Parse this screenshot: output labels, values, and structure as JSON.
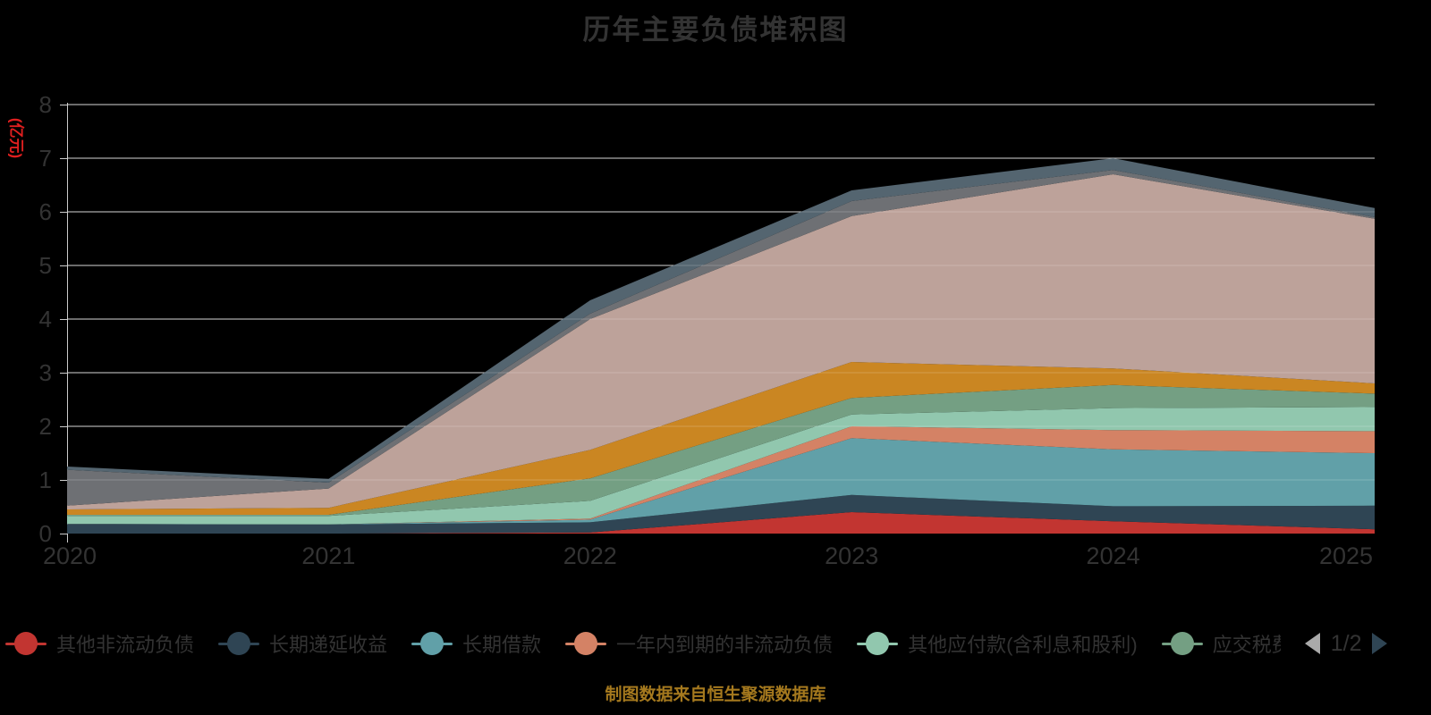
{
  "title": "历年主要负债堆积图",
  "y_axis": {
    "name": "(亿元)",
    "min": 0,
    "max": 8,
    "tick_labels": [
      "0",
      "1",
      "2",
      "3",
      "4",
      "5",
      "6",
      "7",
      "8"
    ]
  },
  "x_axis": {
    "labels": [
      "2020",
      "2021",
      "2022",
      "2023",
      "2024",
      "2025"
    ]
  },
  "legend": {
    "items": [
      {
        "label": "其他非流动负债",
        "color": "#c23531",
        "clipped": false
      },
      {
        "label": "长期递延收益",
        "color": "#2f4554",
        "clipped": false
      },
      {
        "label": "长期借款",
        "color": "#61a0a8",
        "clipped": false
      },
      {
        "label": "一年内到期的非流动负债",
        "color": "#d48265",
        "clipped": false
      },
      {
        "label": "其他应付款(含利息和股利)",
        "color": "#91c7ae",
        "clipped": false
      },
      {
        "label": "应交税费",
        "color": "#749f83",
        "clipped": true
      }
    ],
    "pager": {
      "page": "1/2"
    }
  },
  "source_note": "制图数据来自恒生聚源数据库",
  "colors": {
    "background": "#000000",
    "title_text": "#333333",
    "axis_label": "#333333",
    "axis_line": "#cccccc",
    "grid_line": "#cccccc",
    "y_name_text": "#e01f1f",
    "legend_text": "#333333",
    "pager_prev": "#aaaaaa",
    "pager_next": "#2f4554",
    "source_text": "#a5791e"
  },
  "chart_data": {
    "type": "area",
    "stacked": true,
    "title": "历年主要负债堆积图",
    "xlabel": "",
    "ylabel": "(亿元)",
    "x": [
      "2020",
      "2021",
      "2022",
      "2023",
      "2024",
      "2025"
    ],
    "ylim": [
      0,
      8
    ],
    "y_ticks": [
      0,
      1,
      2,
      3,
      4,
      5,
      6,
      7,
      8
    ],
    "grid": true,
    "legend_position": "bottom",
    "legend_pages": "1/2",
    "series": [
      {
        "name": "其他非流动负债",
        "color": "#c23531",
        "values": [
          0,
          0,
          0.02,
          0.4,
          0.23,
          0.08
        ]
      },
      {
        "name": "长期递延收益",
        "color": "#2f4554",
        "values": [
          0.18,
          0.17,
          0.19,
          0.32,
          0.28,
          0.44
        ]
      },
      {
        "name": "长期借款",
        "color": "#61a0a8",
        "values": [
          0,
          0,
          0.05,
          1.06,
          1.06,
          0.98
        ]
      },
      {
        "name": "一年内到期的非流动负债",
        "color": "#d48265",
        "values": [
          0,
          0,
          0.02,
          0.22,
          0.36,
          0.41
        ]
      },
      {
        "name": "其他应付款(含利息和股利)",
        "color": "#91c7ae",
        "values": [
          0.15,
          0.16,
          0.33,
          0.22,
          0.41,
          0.45
        ]
      },
      {
        "name": "应交税费",
        "color": "#749f83",
        "values": [
          0.02,
          0.02,
          0.42,
          0.31,
          0.43,
          0.25
        ]
      },
      {
        "name": "",
        "color": "#ca8622",
        "values": [
          0.1,
          0.13,
          0.53,
          0.67,
          0.31,
          0.19
        ]
      },
      {
        "name": "",
        "color": "#bda29a",
        "values": [
          0.07,
          0.36,
          2.44,
          2.72,
          3.62,
          3.07
        ]
      },
      {
        "name": "",
        "color": "#6e7074",
        "values": [
          0.67,
          0.11,
          0.1,
          0.28,
          0.08,
          0.03
        ]
      },
      {
        "name": "",
        "color": "#546570",
        "values": [
          0.06,
          0.07,
          0.25,
          0.2,
          0.22,
          0.17
        ]
      }
    ]
  }
}
